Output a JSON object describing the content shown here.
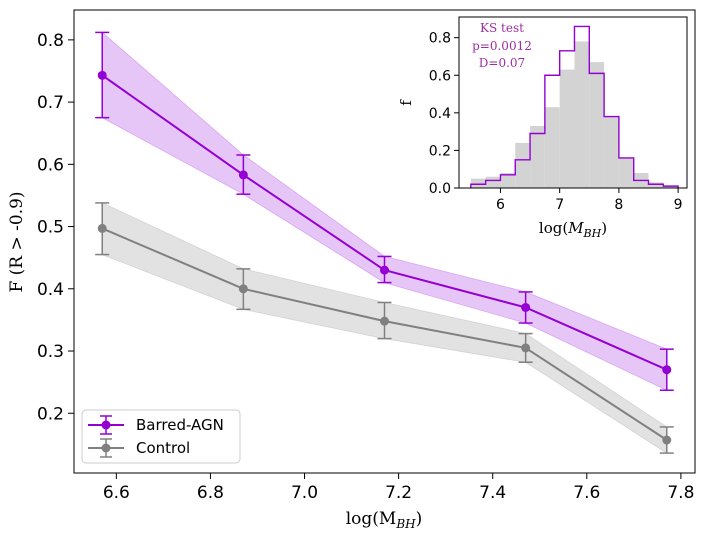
{
  "colors": {
    "barred": "#9400D3",
    "barred_band": "#D9A6F2",
    "control": "#808080",
    "control_band": "#D3D3D3",
    "inset_bar": "#D3D3D3",
    "ks_text": "#9B30A0"
  },
  "chart_data": [
    {
      "type": "line",
      "xlabel": "log(M",
      "xlabel_sub": "BH",
      "xlabel_close": ")",
      "ylabel": "F (R > -0.9)",
      "xlim": [
        6.51,
        7.83
      ],
      "ylim": [
        0.104,
        0.848
      ],
      "xticks": [
        6.6,
        6.8,
        7.0,
        7.2,
        7.4,
        7.6,
        7.8
      ],
      "xtick_labels": [
        "6.6",
        "6.8",
        "7.0",
        "7.2",
        "7.4",
        "7.6",
        "7.8"
      ],
      "yticks": [
        0.2,
        0.3,
        0.4,
        0.5,
        0.6,
        0.7,
        0.8
      ],
      "ytick_labels": [
        "0.2",
        "0.3",
        "0.4",
        "0.5",
        "0.6",
        "0.7",
        "0.8"
      ],
      "legend_position": "lower-left",
      "series": [
        {
          "name": "Barred-AGN",
          "x": [
            6.57,
            6.87,
            7.17,
            7.47,
            7.77
          ],
          "y": [
            0.743,
            0.583,
            0.43,
            0.37,
            0.27
          ],
          "err_low": [
            0.675,
            0.552,
            0.41,
            0.345,
            0.237
          ],
          "err_high": [
            0.812,
            0.615,
            0.452,
            0.395,
            0.303
          ],
          "band_low": [
            0.675,
            0.552,
            0.41,
            0.345,
            0.237
          ],
          "band_high": [
            0.812,
            0.615,
            0.452,
            0.395,
            0.303
          ]
        },
        {
          "name": "Control",
          "x": [
            6.57,
            6.87,
            7.17,
            7.47,
            7.77
          ],
          "y": [
            0.497,
            0.4,
            0.348,
            0.305,
            0.157
          ],
          "err_low": [
            0.455,
            0.367,
            0.32,
            0.282,
            0.136
          ],
          "err_high": [
            0.538,
            0.432,
            0.378,
            0.328,
            0.178
          ],
          "band_low": [
            0.455,
            0.367,
            0.32,
            0.282,
            0.136
          ],
          "band_high": [
            0.538,
            0.432,
            0.378,
            0.328,
            0.178
          ]
        }
      ]
    },
    {
      "type": "bar",
      "subtype": "histogram",
      "xlabel": "log(",
      "xlabel_var": "M",
      "xlabel_sub": "BH",
      "xlabel_close": ")",
      "ylabel": "f",
      "xlim": [
        5.3,
        9.15
      ],
      "ylim": [
        0.0,
        0.91
      ],
      "xticks": [
        6,
        7,
        8,
        9
      ],
      "xtick_labels": [
        "6",
        "7",
        "8",
        "9"
      ],
      "yticks": [
        0.0,
        0.2,
        0.4,
        0.6,
        0.8
      ],
      "ytick_labels": [
        "0.0",
        "0.2",
        "0.4",
        "0.6",
        "0.8"
      ],
      "bin_edges": [
        5.5,
        5.75,
        6.0,
        6.25,
        6.5,
        6.75,
        7.0,
        7.25,
        7.5,
        7.75,
        8.0,
        8.25,
        8.5,
        8.75,
        9.0
      ],
      "series": [
        {
          "name": "Control",
          "style": "filled",
          "values": [
            0.05,
            0.06,
            0.08,
            0.24,
            0.33,
            0.43,
            0.63,
            0.78,
            0.67,
            0.38,
            0.16,
            0.08,
            0.03,
            0.01
          ]
        },
        {
          "name": "Barred-AGN",
          "style": "step",
          "values": [
            0.02,
            0.04,
            0.07,
            0.15,
            0.29,
            0.6,
            0.73,
            0.86,
            0.61,
            0.38,
            0.16,
            0.04,
            0.02,
            0.01
          ]
        }
      ],
      "annotation": [
        "KS test",
        "p=0.0012",
        "D=0.07"
      ]
    }
  ]
}
